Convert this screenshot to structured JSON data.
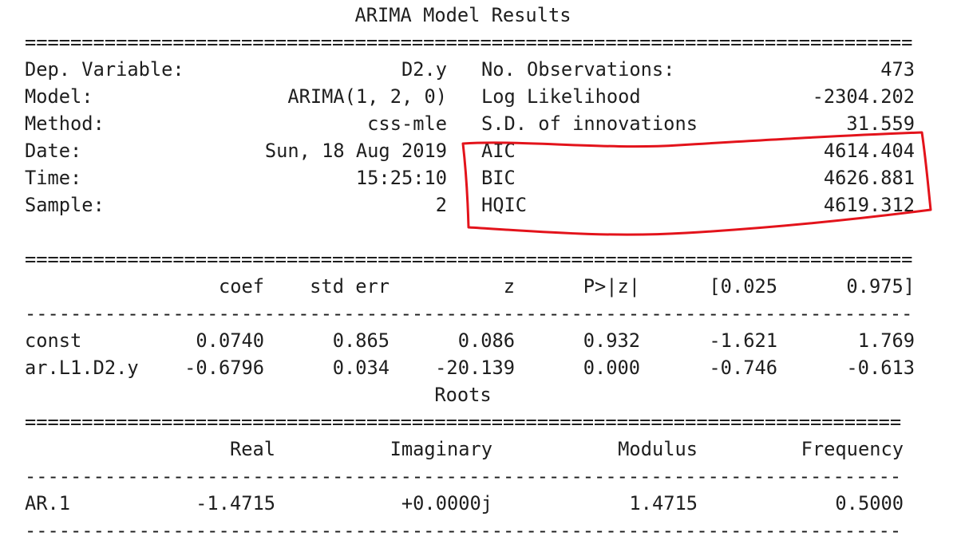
{
  "title": "ARIMA Model Results",
  "summary": [
    {
      "left_label": "Dep. Variable:",
      "left_value": "D2.y",
      "right_label": "No. Observations:",
      "right_value": "473"
    },
    {
      "left_label": "Model:",
      "left_value": "ARIMA(1, 2, 0)",
      "right_label": "Log Likelihood",
      "right_value": "-2304.202"
    },
    {
      "left_label": "Method:",
      "left_value": "css-mle",
      "right_label": "S.D. of innovations",
      "right_value": "31.559"
    },
    {
      "left_label": "Date:",
      "left_value": "Sun, 18 Aug 2019",
      "right_label": "AIC",
      "right_value": "4614.404"
    },
    {
      "left_label": "Time:",
      "left_value": "15:25:10",
      "right_label": "BIC",
      "right_value": "4626.881"
    },
    {
      "left_label": "Sample:",
      "left_value": "2",
      "right_label": "HQIC",
      "right_value": "4619.312"
    }
  ],
  "coef_table": {
    "headers": [
      "coef",
      "std err",
      "z",
      "P>|z|",
      "[0.025",
      "0.975]"
    ],
    "rows": [
      {
        "name": "const",
        "cells": [
          "0.0740",
          "0.865",
          "0.086",
          "0.932",
          "-1.621",
          "1.769"
        ]
      },
      {
        "name": "ar.L1.D2.y",
        "cells": [
          "-0.6796",
          "0.034",
          "-20.139",
          "0.000",
          "-0.746",
          "-0.613"
        ]
      }
    ]
  },
  "roots": {
    "title": "Roots",
    "headers": [
      "Real",
      "Imaginary",
      "Modulus",
      "Frequency"
    ],
    "rows": [
      {
        "name": "AR.1",
        "cells": [
          "-1.4715",
          "+0.0000j",
          "1.4715",
          "0.5000"
        ]
      }
    ]
  },
  "annotation": {
    "color": "#e3131b"
  }
}
